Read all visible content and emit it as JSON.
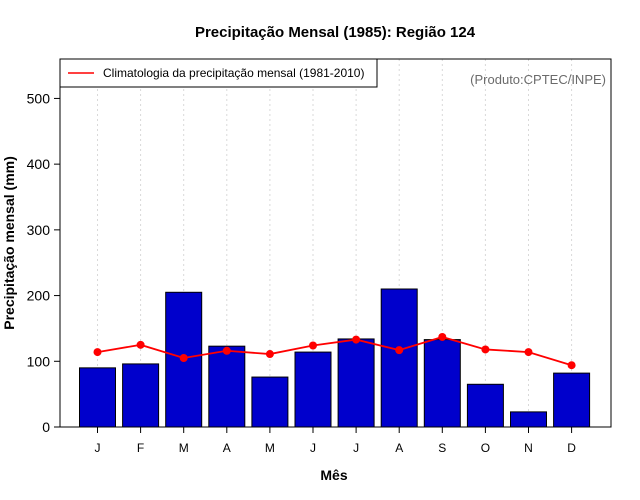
{
  "colors": {
    "bar_fill": "#0000cc",
    "bar_stroke": "#000000",
    "line": "#ff0000",
    "grid": "#d9d9d9",
    "credit": "#6b6b6b"
  },
  "chart_data": {
    "type": "bar",
    "title": "Precipitação Mensal (1985): Região 124",
    "xlabel": "Mês",
    "ylabel": "Precipitação mensal (mm)",
    "categories": [
      "J",
      "F",
      "M",
      "A",
      "M",
      "J",
      "J",
      "A",
      "S",
      "O",
      "N",
      "D"
    ],
    "ylim": [
      0,
      560
    ],
    "yticks": [
      0,
      100,
      200,
      300,
      400,
      500
    ],
    "grid": "vertical dotted",
    "series": [
      {
        "name": "Precipitação mensal (1985)",
        "kind": "bar",
        "values": [
          90,
          96,
          205,
          123,
          76,
          114,
          134,
          210,
          133,
          65,
          23,
          82
        ]
      },
      {
        "name": "Climatologia da precipitação mensal (1981-2010)",
        "kind": "line",
        "values": [
          114,
          125,
          105,
          116,
          111,
          124,
          133,
          117,
          137,
          118,
          114,
          94
        ]
      }
    ],
    "legend": {
      "label": "Climatologia da precipitação mensal (1981-2010)",
      "position": "top-left"
    },
    "annotation": "(Produto:CPTEC/INPE)"
  }
}
